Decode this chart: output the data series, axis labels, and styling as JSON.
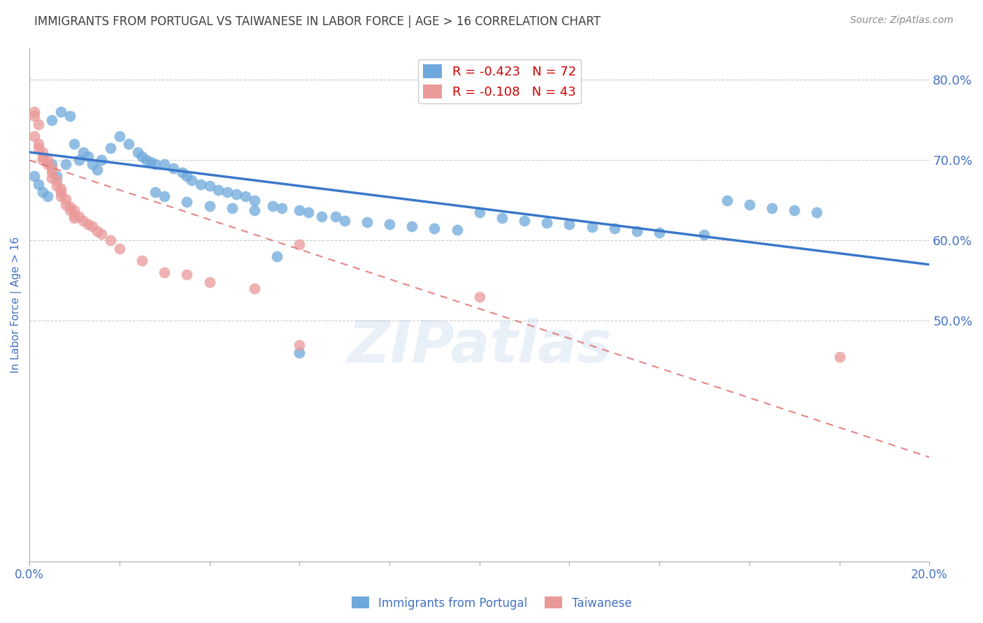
{
  "title": "IMMIGRANTS FROM PORTUGAL VS TAIWANESE IN LABOR FORCE | AGE > 16 CORRELATION CHART",
  "source": "Source: ZipAtlas.com",
  "ylabel": "In Labor Force | Age > 16",
  "xlim": [
    0.0,
    0.2
  ],
  "ylim": [
    0.2,
    0.84
  ],
  "xticks": [
    0.0,
    0.02,
    0.04,
    0.06,
    0.08,
    0.1,
    0.12,
    0.14,
    0.16,
    0.18,
    0.2
  ],
  "yticks_right": [
    0.8,
    0.7,
    0.6,
    0.5
  ],
  "yticklabels_right": [
    "80.0%",
    "70.0%",
    "60.0%",
    "50.0%"
  ],
  "legend_blue_r": "R = -0.423",
  "legend_blue_n": "N = 72",
  "legend_pink_r": "R = -0.108",
  "legend_pink_n": "N = 43",
  "blue_color": "#6fa8dc",
  "pink_color": "#ea9999",
  "line_blue_color": "#3a78c9",
  "line_pink_color": "#e06666",
  "title_color": "#404040",
  "axis_color": "#4472c4",
  "watermark": "ZIPatlas",
  "background_color": "#ffffff",
  "grid_color": "#cccccc",
  "blue_scatter_x": [
    0.001,
    0.002,
    0.003,
    0.004,
    0.005,
    0.005,
    0.006,
    0.007,
    0.008,
    0.009,
    0.01,
    0.011,
    0.012,
    0.013,
    0.014,
    0.015,
    0.016,
    0.018,
    0.02,
    0.022,
    0.024,
    0.025,
    0.026,
    0.027,
    0.028,
    0.03,
    0.032,
    0.034,
    0.035,
    0.036,
    0.038,
    0.04,
    0.042,
    0.044,
    0.046,
    0.048,
    0.05,
    0.054,
    0.056,
    0.06,
    0.062,
    0.065,
    0.068,
    0.07,
    0.075,
    0.08,
    0.085,
    0.09,
    0.095,
    0.1,
    0.105,
    0.11,
    0.115,
    0.12,
    0.125,
    0.13,
    0.135,
    0.14,
    0.15,
    0.155,
    0.16,
    0.165,
    0.17,
    0.175,
    0.028,
    0.03,
    0.035,
    0.04,
    0.045,
    0.05,
    0.055,
    0.06
  ],
  "blue_scatter_y": [
    0.68,
    0.67,
    0.66,
    0.655,
    0.695,
    0.75,
    0.68,
    0.76,
    0.695,
    0.755,
    0.72,
    0.7,
    0.71,
    0.705,
    0.695,
    0.688,
    0.7,
    0.715,
    0.73,
    0.72,
    0.71,
    0.705,
    0.7,
    0.698,
    0.695,
    0.695,
    0.69,
    0.685,
    0.68,
    0.675,
    0.67,
    0.668,
    0.663,
    0.66,
    0.658,
    0.655,
    0.65,
    0.643,
    0.64,
    0.638,
    0.635,
    0.63,
    0.63,
    0.625,
    0.623,
    0.62,
    0.618,
    0.615,
    0.613,
    0.635,
    0.628,
    0.625,
    0.622,
    0.62,
    0.617,
    0.615,
    0.612,
    0.61,
    0.607,
    0.65,
    0.645,
    0.64,
    0.638,
    0.635,
    0.66,
    0.655,
    0.648,
    0.643,
    0.64,
    0.638,
    0.58,
    0.46
  ],
  "pink_scatter_x": [
    0.001,
    0.001,
    0.001,
    0.002,
    0.002,
    0.002,
    0.003,
    0.003,
    0.003,
    0.004,
    0.004,
    0.005,
    0.005,
    0.005,
    0.006,
    0.006,
    0.007,
    0.007,
    0.007,
    0.008,
    0.008,
    0.009,
    0.009,
    0.01,
    0.01,
    0.01,
    0.011,
    0.012,
    0.013,
    0.014,
    0.015,
    0.016,
    0.018,
    0.02,
    0.025,
    0.03,
    0.035,
    0.04,
    0.05,
    0.06,
    0.18,
    0.1,
    0.06
  ],
  "pink_scatter_y": [
    0.76,
    0.755,
    0.73,
    0.72,
    0.715,
    0.745,
    0.71,
    0.705,
    0.7,
    0.7,
    0.695,
    0.69,
    0.685,
    0.678,
    0.675,
    0.668,
    0.665,
    0.66,
    0.655,
    0.652,
    0.645,
    0.642,
    0.638,
    0.638,
    0.632,
    0.628,
    0.63,
    0.625,
    0.62,
    0.618,
    0.612,
    0.608,
    0.6,
    0.59,
    0.575,
    0.56,
    0.558,
    0.548,
    0.54,
    0.595,
    0.455,
    0.53,
    0.47
  ],
  "blue_line_x": [
    0.0,
    0.2
  ],
  "blue_line_y": [
    0.71,
    0.57
  ],
  "pink_line_x": [
    0.0,
    0.2
  ],
  "pink_line_y": [
    0.7,
    0.33
  ],
  "figsize": [
    14.06,
    8.92
  ],
  "dpi": 100
}
